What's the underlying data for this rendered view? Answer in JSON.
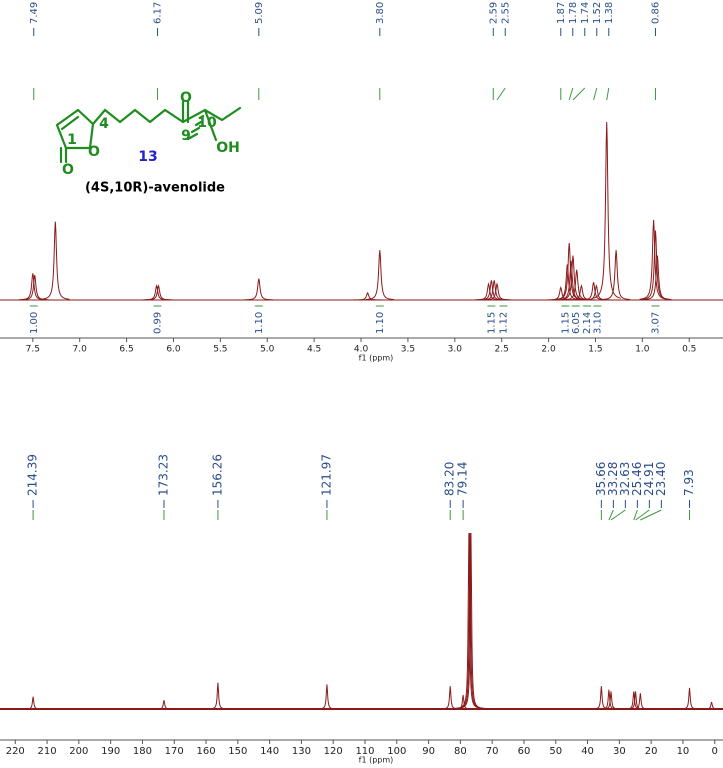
{
  "chart_data": [
    {
      "type": "spectrum",
      "xlabel": "f1 (ppm)",
      "xlim": [
        7.85,
        0.14
      ],
      "xticks": [
        {
          "value": 7.5,
          "label": "7.5"
        },
        {
          "value": 7,
          "label": "7.0"
        },
        {
          "value": 6.5,
          "label": "6.5"
        },
        {
          "value": 6,
          "label": "6.0"
        },
        {
          "value": 5.5,
          "label": "5.5"
        },
        {
          "value": 5,
          "label": "5.0"
        },
        {
          "value": 4.5,
          "label": "4.5"
        },
        {
          "value": 4,
          "label": "4.0"
        },
        {
          "value": 3.5,
          "label": "3.5"
        },
        {
          "value": 3,
          "label": "3.0"
        },
        {
          "value": 2.5,
          "label": "2.5"
        },
        {
          "value": 2,
          "label": "2.0"
        },
        {
          "value": 1.5,
          "label": "1.5"
        },
        {
          "value": 1,
          "label": "1.0"
        },
        {
          "value": 0.5,
          "label": "0.5"
        }
      ],
      "color": "#8b1a1a",
      "peaks": {
        "x": [
          7.5,
          7.48,
          7.26,
          6.18,
          6.16,
          5.09,
          3.93,
          3.8,
          2.64,
          2.61,
          2.58,
          2.55,
          1.87,
          1.8,
          1.78,
          1.76,
          1.74,
          1.7,
          1.65,
          1.52,
          1.49,
          1.38,
          1.28,
          0.88,
          0.86,
          0.84
        ],
        "values": [
          15,
          14,
          44,
          8,
          8,
          12,
          4,
          28,
          9,
          11,
          11,
          9,
          7,
          20,
          32,
          22,
          25,
          17,
          8,
          10,
          8,
          100,
          28,
          45,
          39,
          25
        ]
      },
      "peak_labels": {
        "values": [
          7.49,
          6.17,
          5.09,
          3.8,
          2.59,
          2.55,
          1.87,
          1.78,
          1.74,
          1.52,
          1.38,
          0.86
        ],
        "value_labels": [
          "7.49",
          "6.17",
          "5.09",
          "3.80",
          "2.59",
          "2.55",
          "1.87",
          "1.78",
          "1.74",
          "1.52",
          "1.38",
          "0.86"
        ]
      },
      "integrals": {
        "x": [
          7.49,
          6.17,
          5.09,
          3.8,
          2.61,
          2.48,
          1.82,
          1.71,
          1.59,
          1.48,
          0.86
        ],
        "values": [
          1.0,
          0.99,
          1.1,
          1.1,
          1.15,
          1.12,
          1.15,
          6.05,
          2.14,
          3.1,
          3.07
        ],
        "value_labels": [
          "1.00",
          "0.99",
          "1.10",
          "1.10",
          "1.15",
          "1.12",
          "1.15",
          "6.05",
          "2.14",
          "3.10",
          "3.07"
        ]
      },
      "structure": {
        "atoms": [
          "4",
          "1",
          "O",
          "O",
          "9",
          "10",
          "O",
          "OH"
        ],
        "compound_number": "13",
        "name": "(4S,10R)-avenolide"
      }
    },
    {
      "type": "spectrum",
      "xlabel": "f1 (ppm)",
      "xlim": [
        224.8,
        -2.6
      ],
      "xticks": [
        220,
        210,
        200,
        190,
        180,
        170,
        160,
        150,
        140,
        130,
        120,
        110,
        100,
        90,
        80,
        70,
        60,
        50,
        40,
        30,
        20,
        10,
        0
      ],
      "color": "#8b1a1a",
      "peaks": {
        "x": [
          214.39,
          173.23,
          156.26,
          121.97,
          83.2,
          79.14,
          77.32,
          77.0,
          76.68,
          35.66,
          33.28,
          32.63,
          25.46,
          24.91,
          23.4,
          7.93,
          1.0
        ],
        "values": [
          7,
          5,
          15,
          14,
          13,
          8,
          100,
          100,
          100,
          13,
          11,
          10,
          10,
          10,
          9,
          12,
          4
        ]
      },
      "peak_labels": {
        "values": [
          214.39,
          173.23,
          156.26,
          121.97,
          83.2,
          79.14,
          35.66,
          33.28,
          32.63,
          25.46,
          24.91,
          23.4,
          7.93
        ],
        "value_labels": [
          "214.39",
          "173.23",
          "156.26",
          "121.97",
          "83.20",
          "79.14",
          "35.66",
          "33.28",
          "32.63",
          "25.46",
          "24.91",
          "23.40",
          "7.93"
        ]
      }
    }
  ]
}
